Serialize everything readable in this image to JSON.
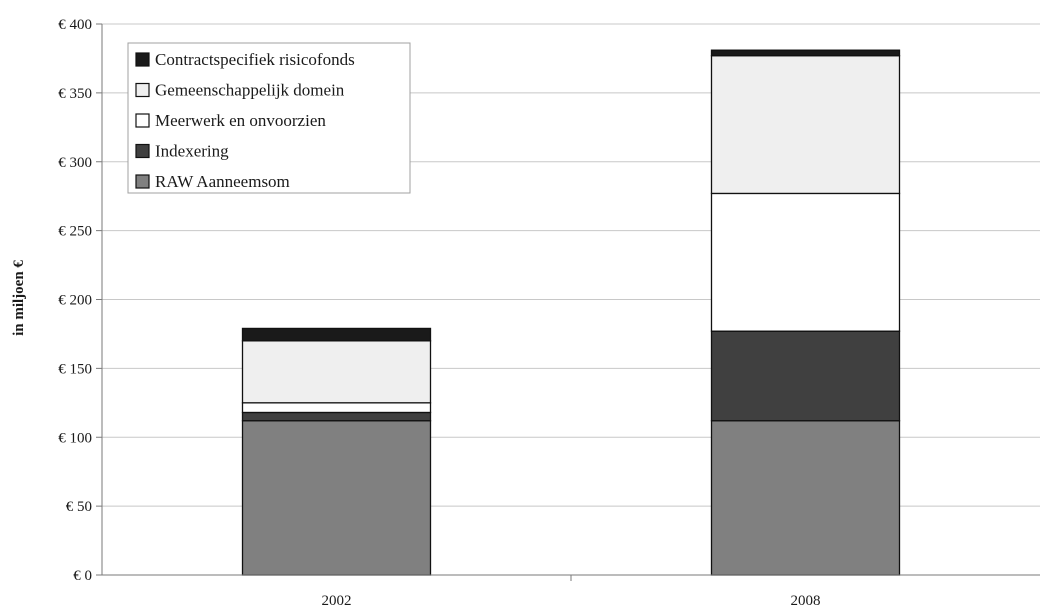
{
  "chart_data": {
    "type": "bar",
    "stacked": true,
    "title": "",
    "xlabel": "",
    "ylabel": "in miljoen €",
    "ylim": [
      0,
      400
    ],
    "yticks": [
      0,
      50,
      100,
      150,
      200,
      250,
      300,
      350,
      400
    ],
    "ytick_labels": [
      "€ 0",
      "€ 50",
      "€ 100",
      "€ 150",
      "€ 200",
      "€ 250",
      "€ 300",
      "€ 350",
      "€ 400"
    ],
    "categories": [
      "2002",
      "2008"
    ],
    "grid": true,
    "legend_position": "top-left",
    "series": [
      {
        "name": "RAW Aanneemsom",
        "color": "#808080",
        "values": [
          112,
          112
        ]
      },
      {
        "name": "Indexering",
        "color": "#404040",
        "values": [
          6,
          65
        ]
      },
      {
        "name": "Meerwerk en onvoorzien",
        "color": "#ffffff",
        "values": [
          7,
          100
        ]
      },
      {
        "name": "Gemeenschappelijk domein",
        "color": "#efefef",
        "values": [
          45,
          100
        ]
      },
      {
        "name": "Contractspecifiek risicofonds",
        "color": "#1a1a1a",
        "values": [
          9,
          4
        ]
      }
    ]
  }
}
